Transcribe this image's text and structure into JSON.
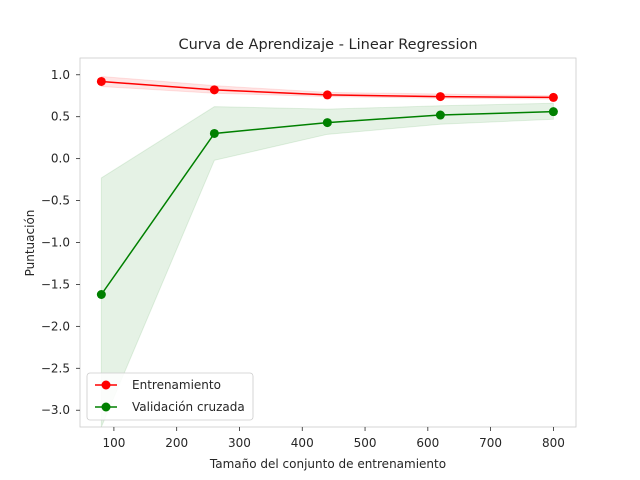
{
  "chart_data": {
    "type": "line",
    "title": "Curva de Aprendizaje - Linear Regression",
    "xlabel": "Tamaño del conjunto de entrenamiento",
    "ylabel": "Puntuación",
    "xlim": [
      46,
      836
    ],
    "ylim": [
      -3.2,
      1.2
    ],
    "xticks": [
      100,
      200,
      300,
      400,
      500,
      600,
      700,
      800
    ],
    "yticks": [
      -3.0,
      -2.5,
      -2.0,
      -1.5,
      -1.0,
      -0.5,
      0.0,
      0.5,
      1.0
    ],
    "grid": false,
    "legend_position": "lower-left",
    "x": [
      80,
      260,
      440,
      620,
      800
    ],
    "series": [
      {
        "name": "Entrenamiento",
        "color": "#ff0000",
        "values": [
          0.92,
          0.82,
          0.76,
          0.74,
          0.73
        ],
        "band_lower": [
          0.86,
          0.78,
          0.74,
          0.72,
          0.71
        ],
        "band_upper": [
          0.98,
          0.87,
          0.79,
          0.77,
          0.75
        ]
      },
      {
        "name": "Validación cruzada",
        "color": "#008000",
        "values": [
          -1.62,
          0.3,
          0.43,
          0.52,
          0.56
        ],
        "band_lower": [
          -3.2,
          -0.02,
          0.29,
          0.41,
          0.47
        ],
        "band_upper": [
          -0.23,
          0.62,
          0.59,
          0.63,
          0.66
        ]
      }
    ]
  }
}
